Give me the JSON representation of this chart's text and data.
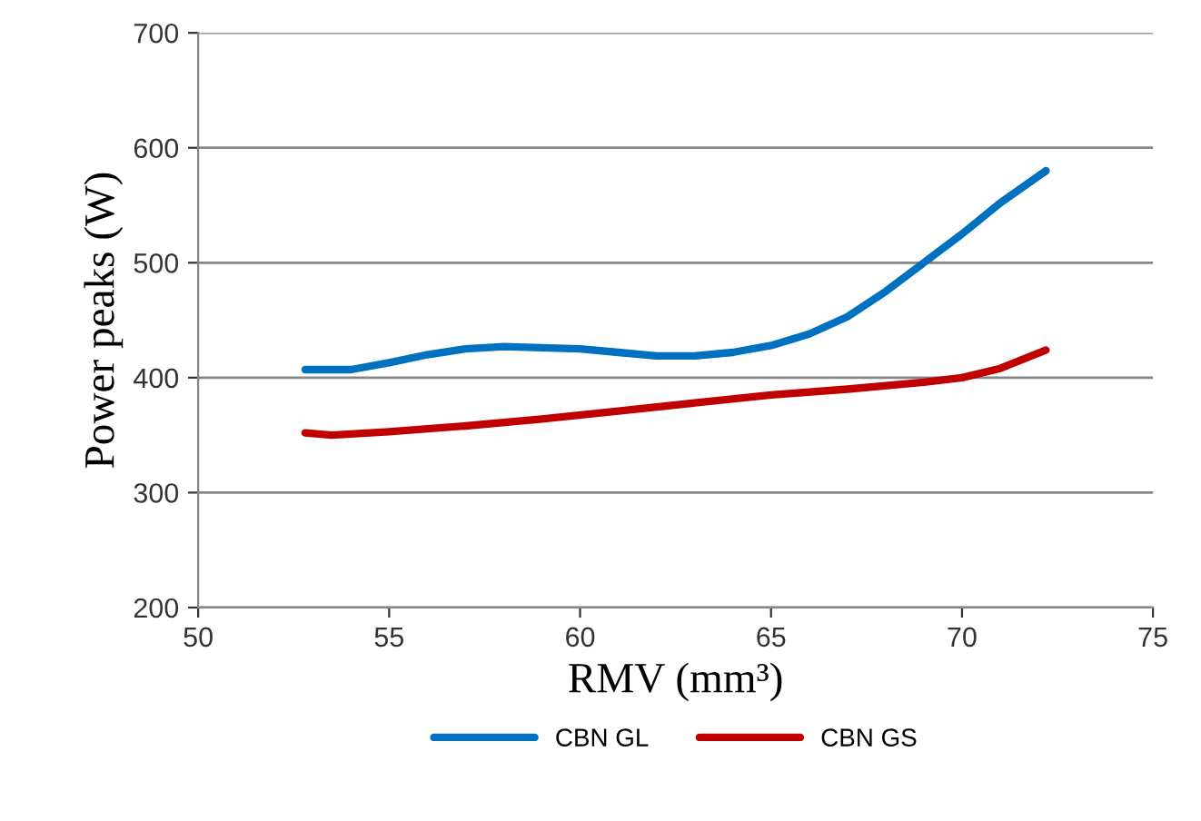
{
  "chart_data": {
    "type": "line",
    "xlabel": "RMV (mm³)",
    "ylabel": "Power peaks (W)",
    "xlim": [
      50,
      75
    ],
    "xticks": [
      50,
      55,
      60,
      65,
      70,
      75
    ],
    "ylim": [
      200,
      700
    ],
    "yticks": [
      200,
      300,
      400,
      500,
      600,
      700
    ],
    "grid": "y",
    "legend": "bottom",
    "marker": "none",
    "line_style": "solid",
    "series": [
      {
        "name": "CBN GL",
        "color": "#0070c0",
        "x": [
          52.8,
          54,
          55,
          56,
          57,
          58,
          59,
          60,
          61,
          62,
          63,
          64,
          65,
          66,
          67,
          68,
          69,
          70,
          71,
          72.2
        ],
        "values": [
          407,
          407,
          413,
          420,
          425,
          427,
          426,
          425,
          422,
          419,
          419,
          422,
          428,
          438,
          453,
          475,
          500,
          525,
          552,
          580
        ]
      },
      {
        "name": "CBN GS",
        "color": "#c00000",
        "x": [
          52.8,
          53.5,
          55,
          57,
          59,
          61,
          63,
          65,
          67,
          69,
          70,
          71,
          72.2
        ],
        "values": [
          352,
          350,
          353,
          358,
          364,
          371,
          378,
          385,
          390,
          396,
          400,
          408,
          424
        ]
      }
    ]
  }
}
